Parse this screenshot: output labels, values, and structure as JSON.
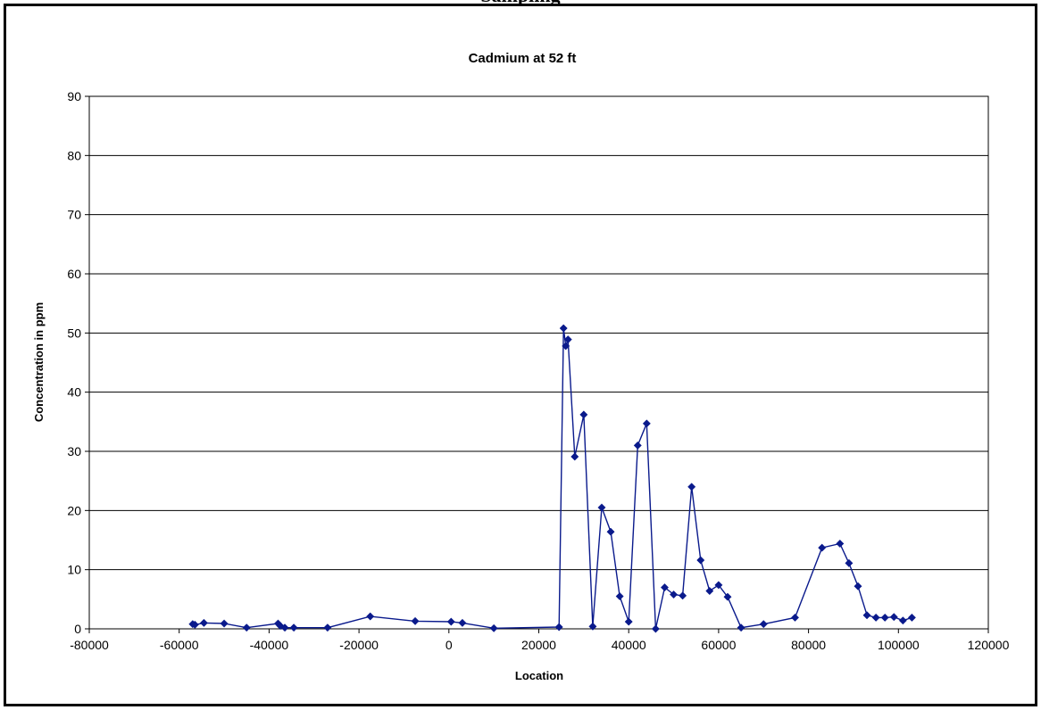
{
  "header": {
    "cutoff_text": "Sampling"
  },
  "chart_data": {
    "type": "line",
    "title": "Cadmium at 52 ft",
    "xlabel": "Location",
    "ylabel": "Concentration in ppm",
    "xlim": [
      -80000,
      120000
    ],
    "ylim": [
      0,
      90
    ],
    "x_ticks": [
      -80000,
      -60000,
      -40000,
      -20000,
      0,
      20000,
      40000,
      60000,
      80000,
      100000,
      120000
    ],
    "y_ticks": [
      0,
      10,
      20,
      30,
      40,
      50,
      60,
      70,
      80,
      90
    ],
    "grid": "horizontal",
    "line_color": "#0a1a8c",
    "marker": "diamond",
    "series": [
      {
        "x": [
          -57000,
          -56500,
          -54500,
          -50000,
          -45000,
          -38000,
          -37500,
          -36500,
          -34500,
          -27000,
          -17500,
          -7500,
          500,
          3000,
          10000,
          24500,
          25500,
          26000,
          26500,
          28000,
          30000,
          32000,
          34000,
          36000,
          38000,
          40000,
          42000,
          44000,
          46000,
          48000,
          50000,
          52000,
          54000,
          56000,
          58000,
          60000,
          62000,
          65000,
          70000,
          77000,
          83000,
          87000,
          89000,
          91000,
          93000,
          95000,
          97000,
          99000,
          101000,
          103000
        ],
        "y": [
          0.8,
          0.7,
          1.0,
          0.9,
          0.2,
          0.9,
          0.5,
          0.2,
          0.2,
          0.2,
          2.1,
          1.3,
          1.2,
          1.0,
          0.1,
          0.3,
          50.8,
          47.8,
          48.9,
          29.1,
          36.2,
          0.4,
          20.5,
          16.4,
          5.5,
          1.2,
          31.0,
          34.7,
          0.0,
          7.0,
          5.8,
          5.6,
          24.0,
          11.6,
          6.4,
          7.4,
          5.4,
          0.2,
          0.8,
          1.9,
          13.7,
          14.4,
          11.1,
          7.2,
          2.3,
          1.9,
          1.9,
          2.0,
          1.4,
          1.9
        ]
      }
    ]
  }
}
